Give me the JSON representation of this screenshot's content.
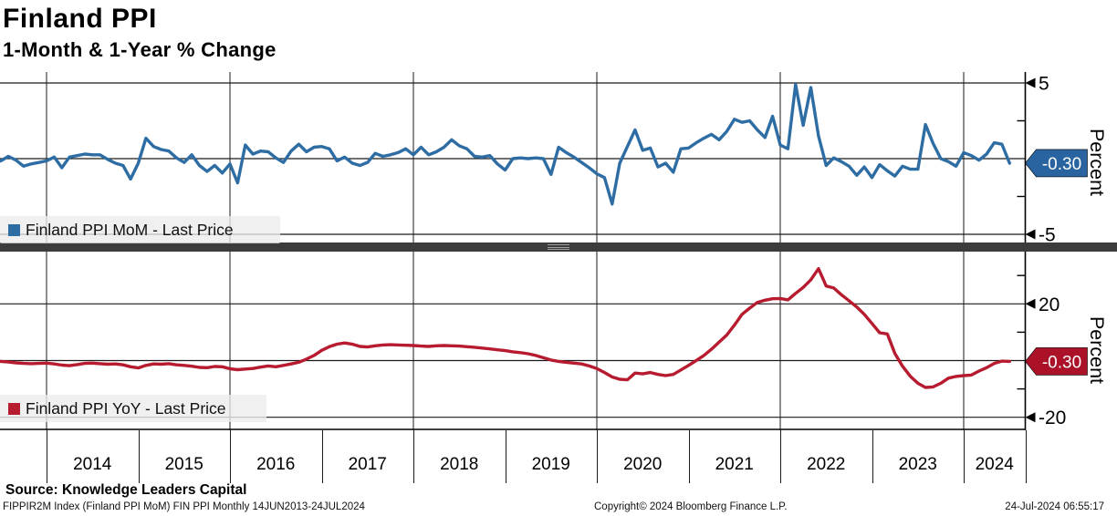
{
  "header": {
    "title": "Finland PPI",
    "subtitle": "1-Month & 1-Year % Change"
  },
  "top_panel": {
    "legend_label": "Finland PPI MoM - Last Price",
    "last_price_badge": "-0.30",
    "axis_unit_label": "Percent"
  },
  "bottom_panel": {
    "legend_label": "Finland PPI YoY - Last Price",
    "last_price_badge": "-0.30",
    "axis_unit_label": "Percent"
  },
  "footer": {
    "source": "Source: Knowledge Leaders Capital",
    "ticker_info": "FIPPIR2M Index (Finland PPI MoM) FIN PPI  Monthly 14JUN2013-24JUL2024",
    "copyright": "Copyright© 2024 Bloomberg Finance L.P.",
    "timestamp": "24-Jul-2024 06:55:17"
  },
  "colors": {
    "mom_line": "#2e6da4",
    "mom_badge": "#2a64a0",
    "yoy_line": "#b71b30",
    "yoy_badge": "#ab1228",
    "grid": "#1a1a1a",
    "separator": "#3c3c3c",
    "legend_bg": "#ececec",
    "badge_text": "#ffffff"
  },
  "chart_data": [
    {
      "type": "line",
      "panel": "top",
      "title": "Finland PPI MoM - Last Price",
      "ylabel": "Percent",
      "frequency": "monthly",
      "x_start": "2013-06",
      "x_end": "2024-07",
      "x_tick_years": [
        "2014",
        "2015",
        "2016",
        "2017",
        "2018",
        "2019",
        "2020",
        "2021",
        "2022",
        "2023",
        "2024"
      ],
      "ylim": [
        -5.5,
        5.7
      ],
      "yticks_labeled": [
        5,
        -5
      ],
      "ytick_labels": [
        "5",
        "-5"
      ],
      "yticks_minor": [
        2.5,
        -2.5
      ],
      "grid": true,
      "legend_position": "bottom-left",
      "last_price": -0.3,
      "values": [
        -0.1,
        -0.15,
        0.15,
        -0.1,
        -0.5,
        -0.35,
        -0.25,
        -0.15,
        0.1,
        -0.6,
        0.1,
        0.2,
        0.3,
        0.25,
        0.25,
        -0.05,
        -0.3,
        -0.45,
        -1.35,
        -0.3,
        1.35,
        0.8,
        0.6,
        0.5,
        0.05,
        -0.25,
        0.25,
        -0.45,
        -0.85,
        -0.45,
        -0.95,
        -0.35,
        -1.6,
        0.9,
        0.3,
        0.5,
        0.45,
        0.05,
        -0.25,
        0.5,
        0.95,
        0.45,
        0.75,
        0.8,
        0.65,
        -0.15,
        0.1,
        -0.3,
        -0.45,
        -0.25,
        0.35,
        0.15,
        0.25,
        0.4,
        0.65,
        0.25,
        0.75,
        0.25,
        0.45,
        0.75,
        1.25,
        0.85,
        0.65,
        0.15,
        0.1,
        0.2,
        -0.35,
        -0.75,
        0.0,
        0.05,
        0.0,
        0.05,
        0.0,
        -1.05,
        0.75,
        0.4,
        0.1,
        -0.25,
        -0.6,
        -1.0,
        -1.25,
        -3.0,
        -0.3,
        0.8,
        1.9,
        0.55,
        0.7,
        -0.55,
        -0.3,
        -0.9,
        0.65,
        0.7,
        1.05,
        1.35,
        1.6,
        1.25,
        1.8,
        2.6,
        2.4,
        2.5,
        1.9,
        1.4,
        2.8,
        0.9,
        0.65,
        4.9,
        2.2,
        4.7,
        1.5,
        -0.45,
        0.05,
        -0.2,
        -0.5,
        -1.1,
        -0.55,
        -1.25,
        -0.4,
        -0.8,
        -1.15,
        -0.5,
        -0.7,
        -0.7,
        2.25,
        1.0,
        0.0,
        -0.2,
        -0.5,
        0.4,
        0.2,
        -0.1,
        0.3,
        1.05,
        0.95,
        -0.3
      ]
    },
    {
      "type": "line",
      "panel": "bottom",
      "title": "Finland PPI YoY - Last Price",
      "ylabel": "Percent",
      "frequency": "monthly",
      "x_start": "2013-06",
      "x_end": "2024-07",
      "x_tick_years": [
        "2014",
        "2015",
        "2016",
        "2017",
        "2018",
        "2019",
        "2020",
        "2021",
        "2022",
        "2023",
        "2024"
      ],
      "ylim": [
        -24.5,
        38.4
      ],
      "yticks_labeled": [
        20,
        -20
      ],
      "ytick_labels": [
        "20",
        "-20"
      ],
      "yticks_minor": [
        30,
        10,
        -10
      ],
      "grid": true,
      "legend_position": "bottom-left",
      "last_price": -0.3,
      "values": [
        -0.2,
        -0.3,
        -0.5,
        -0.8,
        -1.0,
        -1.1,
        -1.0,
        -0.9,
        -1.2,
        -1.6,
        -1.8,
        -1.4,
        -1.0,
        -0.9,
        -1.1,
        -1.3,
        -1.2,
        -1.5,
        -2.2,
        -2.6,
        -1.7,
        -1.2,
        -1.3,
        -1.1,
        -1.5,
        -1.7,
        -2.0,
        -2.4,
        -2.5,
        -2.1,
        -2.2,
        -2.9,
        -3.2,
        -3.0,
        -2.8,
        -2.3,
        -1.9,
        -2.2,
        -1.7,
        -1.2,
        -0.6,
        0.5,
        1.8,
        3.6,
        4.9,
        5.8,
        6.2,
        5.8,
        5.0,
        4.8,
        5.2,
        5.5,
        5.6,
        5.5,
        5.4,
        5.3,
        5.1,
        5.0,
        5.2,
        5.3,
        5.2,
        5.1,
        4.9,
        4.7,
        4.4,
        4.1,
        3.8,
        3.5,
        3.1,
        2.8,
        2.4,
        1.8,
        1.0,
        0.2,
        -0.3,
        -0.6,
        -0.9,
        -1.2,
        -1.9,
        -2.8,
        -4.2,
        -5.8,
        -6.6,
        -6.8,
        -4.4,
        -4.7,
        -4.2,
        -4.9,
        -5.3,
        -4.9,
        -3.3,
        -1.7,
        0.0,
        1.8,
        4.0,
        6.5,
        9.0,
        12.5,
        16.3,
        18.5,
        20.5,
        21.3,
        21.8,
        21.9,
        21.4,
        23.7,
        25.8,
        28.5,
        32.4,
        26.3,
        25.6,
        23.2,
        21.1,
        18.9,
        16.3,
        13.1,
        9.8,
        9.4,
        2.5,
        -2.0,
        -5.5,
        -8.0,
        -9.5,
        -9.3,
        -8.0,
        -6.2,
        -5.6,
        -5.3,
        -5.1,
        -3.7,
        -2.5,
        -1.0,
        -0.2,
        -0.3
      ]
    }
  ]
}
